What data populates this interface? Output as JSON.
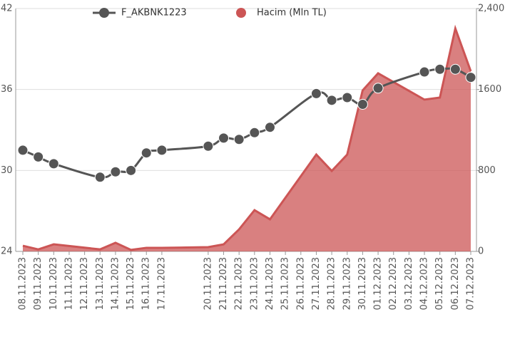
{
  "chart_data": {
    "type": "line-area",
    "categories": [
      "08.11.2023",
      "09.11.2023",
      "10.11.2023",
      "11.11.2023",
      "12.11.2023",
      "13.11.2023",
      "14.11.2023",
      "15.11.2023",
      "16.11.2023",
      "17.11.2023",
      null,
      null,
      "20.11.2023",
      "21.11.2023",
      "22.11.2023",
      "23.11.2023",
      "24.11.2023",
      "25.11.2023",
      "26.11.2023",
      "27.11.2023",
      "28.11.2023",
      "29.11.2023",
      "30.11.2023",
      "01.12.2023",
      "02.12.2023",
      "03.12.2023",
      "04.12.2023",
      "05.12.2023",
      "06.12.2023",
      "07.12.2023"
    ],
    "series": [
      {
        "name": "F_AKBNK1223",
        "type": "line",
        "color": "#555555",
        "axis": "y",
        "values": [
          31.5,
          31.0,
          30.5,
          null,
          null,
          29.5,
          29.9,
          30.0,
          31.3,
          31.5,
          null,
          null,
          31.8,
          32.4,
          32.3,
          32.8,
          33.2,
          null,
          null,
          35.7,
          35.2,
          35.4,
          34.9,
          36.1,
          null,
          null,
          37.3,
          37.5,
          37.5,
          36.9
        ]
      },
      {
        "name": "Hacim (Mln TL)",
        "type": "area",
        "color": "#cc5555",
        "axis": "y2",
        "values": [
          56,
          20,
          70,
          null,
          null,
          20,
          85,
          15,
          35,
          35,
          null,
          null,
          42,
          70,
          218,
          408,
          317,
          null,
          null,
          957,
          795,
          957,
          1591,
          1760,
          null,
          null,
          1500,
          1520,
          2203,
          1781
        ]
      }
    ],
    "connect_nulls": true,
    "ylim": [
      24,
      42
    ],
    "yticks": [
      24,
      30,
      36,
      42
    ],
    "y2lim": [
      0,
      2400
    ],
    "y2ticks": [
      0,
      800,
      1600,
      {
        "value": 2400,
        "label": "2,400"
      }
    ],
    "grid": true
  }
}
